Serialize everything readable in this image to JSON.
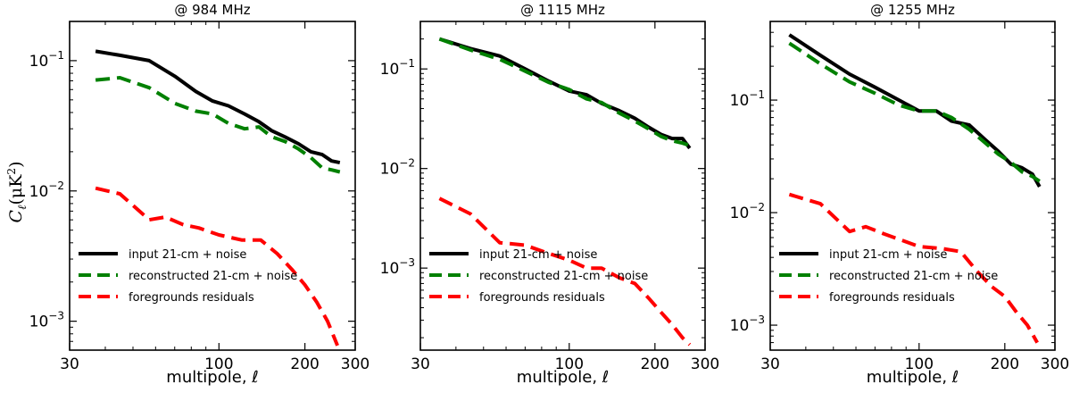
{
  "figure": {
    "ylabel_main": "C",
    "ylabel_sub": "ℓ",
    "ylabel_unit": "(μK",
    "ylabel_exp": "2",
    "ylabel_close": ")"
  },
  "colors": {
    "input": "#000000",
    "reconstructed": "#008000",
    "residuals": "#ff0000"
  },
  "chart_data": [
    {
      "type": "line",
      "title": "@ 984 MHz",
      "xlabel": "multipole, ℓ",
      "xscale": "log",
      "yscale": "log",
      "xlim": [
        30,
        300
      ],
      "ylim": [
        0.0006,
        0.2
      ],
      "xticks": [
        {
          "value": 30,
          "label": "30"
        },
        {
          "value": 100,
          "label": "100"
        },
        {
          "value": 200,
          "label": "200"
        },
        {
          "value": 300,
          "label": "300"
        }
      ],
      "yticks": [
        {
          "value": 0.001,
          "base": "10",
          "exp": "−3"
        },
        {
          "value": 0.01,
          "base": "10",
          "exp": "−2"
        },
        {
          "value": 0.1,
          "base": "10",
          "exp": "−1"
        }
      ],
      "legend_position": "lower-left",
      "series": [
        {
          "name": "input 21-cm + noise",
          "style": "solid",
          "color_key": "input",
          "x": [
            37,
            45,
            57,
            70,
            83,
            95,
            108,
            123,
            138,
            153,
            170,
            190,
            210,
            230,
            248,
            265
          ],
          "y": [
            0.118,
            0.11,
            0.1,
            0.076,
            0.058,
            0.049,
            0.045,
            0.039,
            0.034,
            0.029,
            0.026,
            0.023,
            0.02,
            0.019,
            0.017,
            0.0165
          ]
        },
        {
          "name": "reconstructed 21-cm + noise",
          "style": "dashed",
          "color_key": "reconstructed",
          "x": [
            37,
            45,
            57,
            70,
            83,
            95,
            108,
            123,
            138,
            153,
            170,
            190,
            210,
            230,
            248,
            265
          ],
          "y": [
            0.071,
            0.074,
            0.062,
            0.047,
            0.041,
            0.039,
            0.033,
            0.03,
            0.031,
            0.026,
            0.024,
            0.021,
            0.018,
            0.015,
            0.0145,
            0.014
          ]
        },
        {
          "name": "foregrounds residuals",
          "style": "dashed",
          "color_key": "residuals",
          "x": [
            37,
            45,
            57,
            65,
            75,
            85,
            100,
            120,
            140,
            160,
            180,
            200,
            220,
            240,
            260
          ],
          "y": [
            0.0105,
            0.0095,
            0.006,
            0.0063,
            0.0055,
            0.0052,
            0.0046,
            0.0042,
            0.0042,
            0.0033,
            0.0025,
            0.0019,
            0.0014,
            0.001,
            0.00065
          ]
        }
      ]
    },
    {
      "type": "line",
      "title": "@ 1115 MHz",
      "xlabel": "multipole, ℓ",
      "xscale": "log",
      "yscale": "log",
      "xlim": [
        30,
        300
      ],
      "ylim": [
        0.00015,
        0.3
      ],
      "xticks": [
        {
          "value": 30,
          "label": "30"
        },
        {
          "value": 100,
          "label": "100"
        },
        {
          "value": 200,
          "label": "200"
        },
        {
          "value": 300,
          "label": "300"
        }
      ],
      "yticks": [
        {
          "value": 0.001,
          "base": "10",
          "exp": "−3"
        },
        {
          "value": 0.01,
          "base": "10",
          "exp": "−2"
        },
        {
          "value": 0.1,
          "base": "10",
          "exp": "−1"
        }
      ],
      "legend_position": "lower-left",
      "series": [
        {
          "name": "input 21-cm + noise",
          "style": "solid",
          "color_key": "input",
          "x": [
            35,
            45,
            57,
            70,
            85,
            100,
            115,
            130,
            150,
            170,
            190,
            210,
            230,
            250,
            265
          ],
          "y": [
            0.2,
            0.16,
            0.135,
            0.1,
            0.075,
            0.06,
            0.055,
            0.045,
            0.038,
            0.032,
            0.026,
            0.022,
            0.02,
            0.02,
            0.016
          ]
        },
        {
          "name": "reconstructed 21-cm + noise",
          "style": "dashed",
          "color_key": "reconstructed",
          "x": [
            35,
            45,
            57,
            70,
            85,
            100,
            115,
            130,
            150,
            170,
            190,
            210,
            230,
            250,
            265
          ],
          "y": [
            0.2,
            0.155,
            0.125,
            0.095,
            0.073,
            0.062,
            0.05,
            0.046,
            0.036,
            0.03,
            0.025,
            0.021,
            0.019,
            0.018,
            0.017
          ]
        },
        {
          "name": "foregrounds residuals",
          "style": "dashed",
          "color_key": "residuals",
          "x": [
            35,
            45,
            57,
            70,
            85,
            100,
            115,
            130,
            150,
            170,
            190,
            210,
            230,
            250,
            265
          ],
          "y": [
            0.005,
            0.0035,
            0.0018,
            0.0017,
            0.0014,
            0.0012,
            0.001,
            0.001,
            0.0008,
            0.0007,
            0.0005,
            0.00036,
            0.00027,
            0.0002,
            0.00017
          ]
        }
      ]
    },
    {
      "type": "line",
      "title": "@ 1255 MHz",
      "xlabel": "multipole, ℓ",
      "xscale": "log",
      "yscale": "log",
      "xlim": [
        30,
        300
      ],
      "ylim": [
        0.0006,
        0.5
      ],
      "xticks": [
        {
          "value": 30,
          "label": "30"
        },
        {
          "value": 100,
          "label": "100"
        },
        {
          "value": 200,
          "label": "200"
        },
        {
          "value": 300,
          "label": "300"
        }
      ],
      "yticks": [
        {
          "value": 0.001,
          "base": "10",
          "exp": "−3"
        },
        {
          "value": 0.01,
          "base": "10",
          "exp": "−2"
        },
        {
          "value": 0.1,
          "base": "10",
          "exp": "−1"
        }
      ],
      "legend_position": "lower-left",
      "series": [
        {
          "name": "input 21-cm + noise",
          "style": "solid",
          "color_key": "input",
          "x": [
            35,
            45,
            57,
            70,
            85,
            100,
            115,
            130,
            150,
            170,
            190,
            210,
            230,
            250,
            265
          ],
          "y": [
            0.38,
            0.25,
            0.17,
            0.13,
            0.1,
            0.08,
            0.08,
            0.065,
            0.06,
            0.045,
            0.035,
            0.027,
            0.025,
            0.022,
            0.017
          ]
        },
        {
          "name": "reconstructed 21-cm + noise",
          "style": "dashed",
          "color_key": "reconstructed",
          "x": [
            35,
            45,
            57,
            70,
            85,
            100,
            115,
            130,
            150,
            170,
            190,
            210,
            230,
            250,
            265
          ],
          "y": [
            0.32,
            0.21,
            0.145,
            0.115,
            0.09,
            0.08,
            0.08,
            0.07,
            0.055,
            0.042,
            0.033,
            0.028,
            0.023,
            0.021,
            0.019
          ]
        },
        {
          "name": "foregrounds residuals",
          "style": "dashed",
          "color_key": "residuals",
          "x": [
            35,
            45,
            57,
            65,
            75,
            85,
            100,
            120,
            140,
            160,
            180,
            200,
            220,
            240,
            260
          ],
          "y": [
            0.0145,
            0.012,
            0.0068,
            0.0075,
            0.0065,
            0.0058,
            0.005,
            0.0048,
            0.0045,
            0.003,
            0.0022,
            0.0018,
            0.0013,
            0.001,
            0.0007
          ]
        }
      ]
    }
  ]
}
